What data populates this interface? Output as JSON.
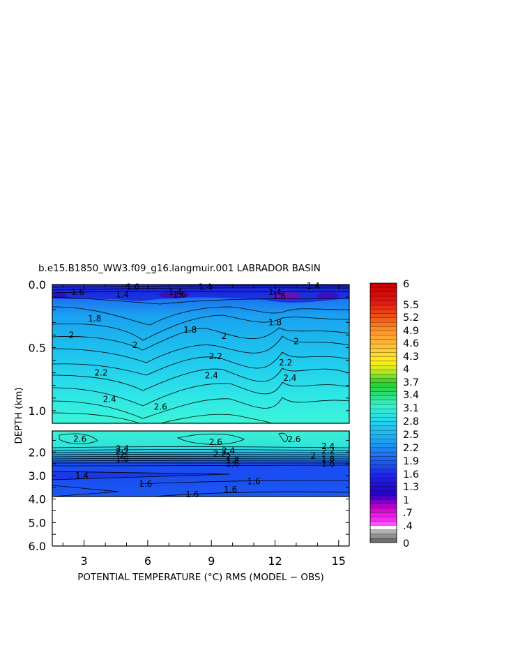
{
  "chart_data": {
    "type": "heatmap",
    "title": "b.e15.B1850_WW3.f09_g16.langmuir.001 LABRADOR BASIN",
    "xlabel": "POTENTIAL TEMPERATURE (°C) RMS (MODEL − OBS)",
    "ylabel": "DEPTH (km)",
    "x_ticks": [
      "3",
      "6",
      "9",
      "12",
      "15"
    ],
    "y_ticks_upper": [
      "0.0",
      "0.5",
      "1.0"
    ],
    "y_ticks_lower": [
      "2.0",
      "3.0",
      "4.0",
      "5.0",
      "6.0"
    ],
    "xlim": [
      1.5,
      15.5
    ],
    "ylim_upper_km": [
      0,
      1.1
    ],
    "ylim_lower_km": [
      1.1,
      6.0
    ],
    "grid": false,
    "legend": "right",
    "colorbar_labels": [
      "6",
      "5.5",
      "5.2",
      "4.9",
      "4.6",
      "4.3",
      "4",
      "3.7",
      "3.4",
      "3.1",
      "2.8",
      "2.5",
      "2.2",
      "1.9",
      "1.6",
      "1.3",
      "1",
      ".7",
      ".4",
      "0"
    ],
    "contour_labels": [
      {
        "text": "1.4",
        "x": 4.8,
        "y": 0.08
      },
      {
        "text": "1.6",
        "x": 5.3,
        "y": 0.02
      },
      {
        "text": "1.4",
        "x": 8.7,
        "y": 0.02
      },
      {
        "text": "1.6",
        "x": 2.7,
        "y": 0.06
      },
      {
        "text": "1.4",
        "x": 7.3,
        "y": 0.06
      },
      {
        "text": "1.6",
        "x": 7.5,
        "y": 0.08
      },
      {
        "text": "1.4",
        "x": 12.0,
        "y": 0.06
      },
      {
        "text": "1.6",
        "x": 12.2,
        "y": 0.09
      },
      {
        "text": "1.4",
        "x": 13.8,
        "y": 0.01
      },
      {
        "text": "1.8",
        "x": 3.5,
        "y": 0.27
      },
      {
        "text": "1.8",
        "x": 8.0,
        "y": 0.36
      },
      {
        "text": "1.8",
        "x": 12.0,
        "y": 0.3
      },
      {
        "text": "2",
        "x": 2.4,
        "y": 0.4
      },
      {
        "text": "2",
        "x": 5.4,
        "y": 0.48
      },
      {
        "text": "2",
        "x": 9.6,
        "y": 0.41
      },
      {
        "text": "2",
        "x": 13.0,
        "y": 0.45
      },
      {
        "text": "2.2",
        "x": 9.2,
        "y": 0.57
      },
      {
        "text": "2.2",
        "x": 12.5,
        "y": 0.62
      },
      {
        "text": "2.2",
        "x": 3.8,
        "y": 0.7
      },
      {
        "text": "2.4",
        "x": 9.0,
        "y": 0.72
      },
      {
        "text": "2.4",
        "x": 12.7,
        "y": 0.74
      },
      {
        "text": "2.4",
        "x": 4.2,
        "y": 0.91
      },
      {
        "text": "2.6",
        "x": 6.6,
        "y": 0.97
      },
      {
        "text": "2.6",
        "x": 2.8,
        "y": 1.44
      },
      {
        "text": "2.6",
        "x": 12.9,
        "y": 1.45
      },
      {
        "text": "2.6",
        "x": 9.2,
        "y": 1.58
      },
      {
        "text": "2.4",
        "x": 4.8,
        "y": 1.85
      },
      {
        "text": "2.2",
        "x": 4.8,
        "y": 1.98
      },
      {
        "text": "2",
        "x": 4.8,
        "y": 2.12
      },
      {
        "text": "1.8",
        "x": 4.8,
        "y": 2.3
      },
      {
        "text": "2.4",
        "x": 9.8,
        "y": 1.95
      },
      {
        "text": "2.2",
        "x": 9.4,
        "y": 2.08
      },
      {
        "text": "2",
        "x": 9.8,
        "y": 2.2
      },
      {
        "text": "1.8",
        "x": 10.0,
        "y": 2.35
      },
      {
        "text": "2.4",
        "x": 14.5,
        "y": 1.75
      },
      {
        "text": "2.2",
        "x": 14.5,
        "y": 1.95
      },
      {
        "text": "2",
        "x": 13.8,
        "y": 2.15
      },
      {
        "text": "1.8",
        "x": 14.5,
        "y": 2.3
      },
      {
        "text": "1.6",
        "x": 10.0,
        "y": 2.5
      },
      {
        "text": "1.6",
        "x": 14.5,
        "y": 2.5
      },
      {
        "text": "1.4",
        "x": 2.9,
        "y": 3.0
      },
      {
        "text": "1.6",
        "x": 5.9,
        "y": 3.35
      },
      {
        "text": "1.6",
        "x": 11.0,
        "y": 3.25
      },
      {
        "text": "1.6",
        "x": 9.9,
        "y": 3.6
      },
      {
        "text": "1.6",
        "x": 8.1,
        "y": 3.8
      }
    ]
  }
}
